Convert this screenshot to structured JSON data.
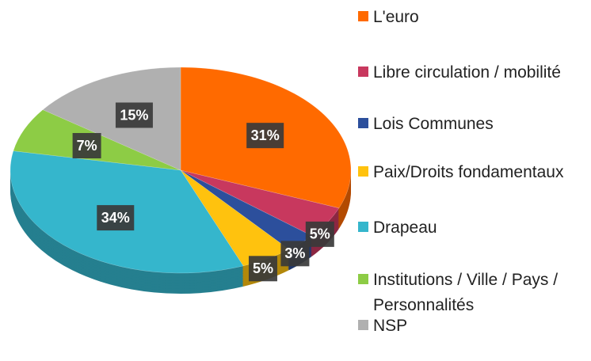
{
  "chart_data": {
    "type": "pie",
    "categories": [
      "L'euro",
      "Libre circulation / mobilité",
      "Lois Communes",
      "Paix/Droits fondamentaux",
      "Drapeau",
      "Institutions / Ville / Pays / Personnalités",
      "NSP"
    ],
    "values": [
      31,
      5,
      3,
      5,
      34,
      7,
      15
    ],
    "value_labels": [
      "31%",
      "5%",
      "3%",
      "5%",
      "34%",
      "7%",
      "15%"
    ],
    "colors": [
      "#ff6a00",
      "#c8385e",
      "#2c4f9c",
      "#ffc20e",
      "#35b6cc",
      "#8dcc45",
      "#b0b0b0"
    ],
    "legend": "right"
  }
}
